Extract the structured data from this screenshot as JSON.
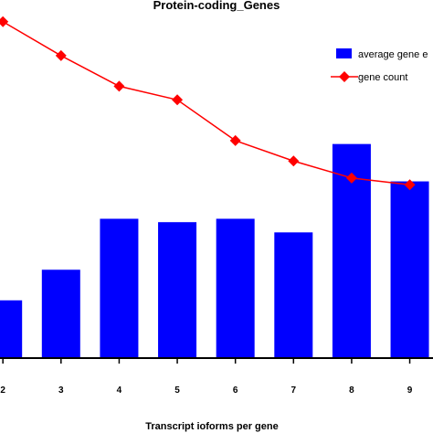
{
  "chart_data": {
    "type": "bar",
    "title": "Protein-coding_Genes",
    "xlabel": "Transcript ioforms per gene",
    "ylabel": "",
    "categories": [
      "2",
      "3",
      "4",
      "5",
      "6",
      "7",
      "8",
      "9"
    ],
    "x_range": [
      1.95,
      9.4
    ],
    "ylim": [
      0,
      100
    ],
    "grid": false,
    "legend_position": "top-right",
    "series": [
      {
        "name": "average gene e",
        "kind": "bar",
        "color": "#0000ff",
        "values": [
          17,
          26,
          41,
          40,
          41,
          37,
          63,
          52
        ]
      },
      {
        "name": "gene count",
        "kind": "line",
        "color": "#ff0000",
        "marker": "diamond",
        "values": [
          99,
          89,
          80,
          76,
          64,
          58,
          53,
          51
        ]
      }
    ]
  }
}
